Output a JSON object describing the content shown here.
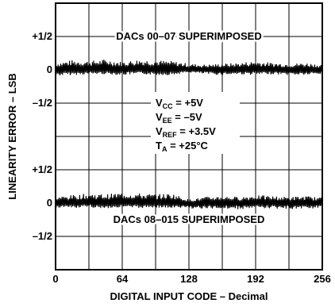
{
  "chart_data": {
    "type": "line",
    "title": "",
    "xlabel": "DIGITAL INPUT CODE – Decimal",
    "ylabel": "LINEARITY ERROR – LSB",
    "xlim": [
      0,
      256
    ],
    "x_ticks": [
      "0",
      "64",
      "128",
      "192",
      "256"
    ],
    "grid": true,
    "panels": [
      {
        "name": "",
        "annotation": "DACs 00–07 SUPERIMPOSED",
        "ylim": [
          -0.75,
          0.75
        ],
        "y_ticks": [
          "+1/2",
          "0",
          "–1/2"
        ],
        "noise_band": {
          "x": [
            0,
            16,
            32,
            48,
            64,
            80,
            96,
            112,
            128,
            144,
            160,
            176,
            192,
            208,
            224,
            240,
            256
          ],
          "upper": [
            0.08,
            0.11,
            0.1,
            0.12,
            0.09,
            0.12,
            0.11,
            0.1,
            0.07,
            0.06,
            0.07,
            0.08,
            0.1,
            0.08,
            0.07,
            0.08,
            0.06
          ],
          "lower": [
            -0.07,
            -0.06,
            -0.05,
            -0.05,
            -0.06,
            -0.05,
            -0.06,
            -0.06,
            -0.03,
            -0.05,
            -0.06,
            -0.05,
            -0.06,
            -0.05,
            -0.06,
            -0.06,
            -0.05
          ]
        }
      },
      {
        "name": "",
        "annotation": "DACs 08–015 SUPERIMPOSED",
        "ylim": [
          -0.75,
          0.75
        ],
        "y_ticks": [
          "+1/2",
          "0",
          "–1/2"
        ],
        "noise_band": {
          "x": [
            0,
            16,
            32,
            48,
            64,
            80,
            96,
            112,
            128,
            144,
            160,
            176,
            192,
            208,
            224,
            240,
            256
          ],
          "upper": [
            0.07,
            0.09,
            0.11,
            0.1,
            0.12,
            0.11,
            0.1,
            0.11,
            0.04,
            0.07,
            0.08,
            0.07,
            0.09,
            0.08,
            0.07,
            0.08,
            0.06
          ],
          "lower": [
            -0.05,
            -0.06,
            -0.05,
            -0.06,
            -0.05,
            -0.06,
            -0.05,
            -0.06,
            -0.06,
            -0.07,
            -0.06,
            -0.07,
            -0.06,
            -0.06,
            -0.07,
            -0.06,
            -0.06
          ]
        }
      }
    ],
    "conditions": [
      {
        "sym": "V",
        "sub": "CC",
        "rest": " = +5V"
      },
      {
        "sym": "V",
        "sub": "EE",
        "rest": " = –5V"
      },
      {
        "sym": "V",
        "sub": "REF",
        "rest": " = +3.5V"
      },
      {
        "sym": "T",
        "sub": "A",
        "rest": " = +25°C"
      }
    ]
  }
}
